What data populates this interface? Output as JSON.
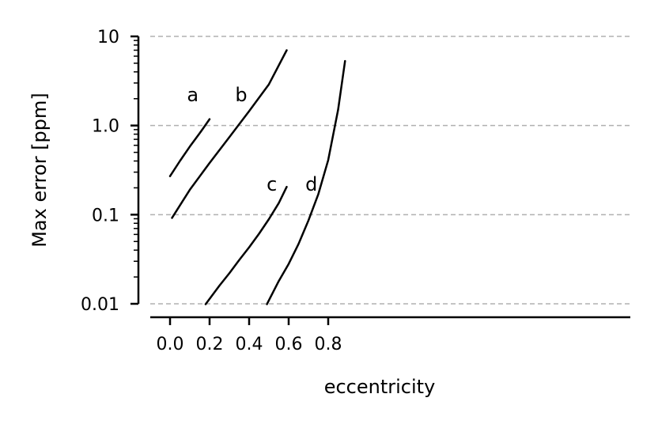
{
  "chart_data": {
    "type": "line",
    "xlabel": "eccentricity",
    "ylabel": "Max error [ppm]",
    "xlim": [
      -0.04,
      0.93
    ],
    "ylim": [
      0.007,
      10
    ],
    "yscale": "log",
    "x_ticks": [
      {
        "value": 0.0,
        "label": "0.0"
      },
      {
        "value": 0.2,
        "label": "0.2"
      },
      {
        "value": 0.4,
        "label": "0.4"
      },
      {
        "value": 0.6,
        "label": "0.6"
      },
      {
        "value": 0.8,
        "label": "0.8"
      }
    ],
    "y_ticks": [
      {
        "value": 10,
        "label": "10"
      },
      {
        "value": 1,
        "label": "1.0"
      },
      {
        "value": 0.1,
        "label": "0.1"
      },
      {
        "value": 0.01,
        "label": "0.01"
      }
    ],
    "grid": "horizontal dashed at y major ticks",
    "series": [
      {
        "name": "a",
        "label_at": [
          0.115,
          2.2
        ],
        "x": [
          0.0,
          0.05,
          0.1,
          0.15,
          0.2
        ],
        "y": [
          0.27,
          0.4,
          0.58,
          0.82,
          1.18
        ]
      },
      {
        "name": "b",
        "label_at": [
          0.36,
          2.2
        ],
        "x": [
          0.01,
          0.1,
          0.2,
          0.3,
          0.4,
          0.5,
          0.59
        ],
        "y": [
          0.092,
          0.19,
          0.38,
          0.74,
          1.45,
          2.9,
          7.0
        ]
      },
      {
        "name": "c",
        "label_at": [
          0.515,
          0.22
        ],
        "x": [
          0.18,
          0.25,
          0.3,
          0.35,
          0.4,
          0.45,
          0.5,
          0.55,
          0.59
        ],
        "y": [
          0.0099,
          0.016,
          0.022,
          0.031,
          0.043,
          0.061,
          0.089,
          0.135,
          0.205
        ]
      },
      {
        "name": "d",
        "label_at": [
          0.715,
          0.22
        ],
        "x": [
          0.49,
          0.55,
          0.6,
          0.65,
          0.7,
          0.75,
          0.8,
          0.85,
          0.885
        ],
        "y": [
          0.0099,
          0.018,
          0.028,
          0.047,
          0.086,
          0.17,
          0.41,
          1.5,
          5.3
        ]
      }
    ]
  }
}
